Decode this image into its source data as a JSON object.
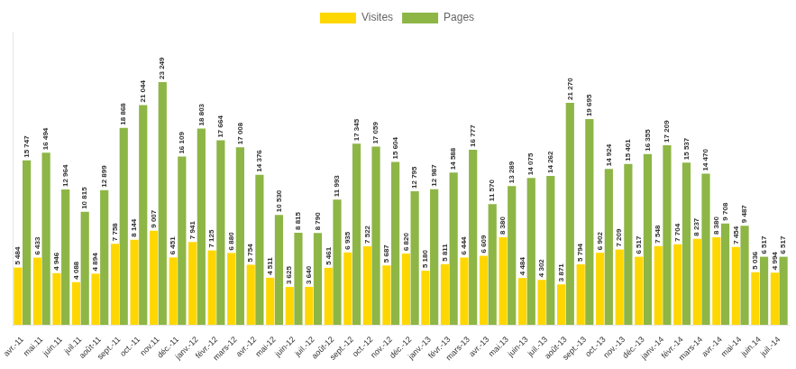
{
  "chart_data": {
    "type": "bar",
    "categories": [
      "avr.-11",
      "mai.11",
      "juin.11",
      "juil.11",
      "août-11",
      "sept.-11",
      "oct.-11",
      "nov.11",
      "déc.-11",
      "janv.-12",
      "févr.-12",
      "mars-12",
      "avr.-12",
      "mai-12",
      "juin-12",
      "juil.-12",
      "août-12",
      "sept.-12",
      "oct.-12",
      "nov.-12",
      "déc.-12",
      "janv.-13",
      "févr.-13",
      "mars-13",
      "avr.-13",
      "mai.13",
      "juin-13",
      "juil.-13",
      "août-13",
      "sept.-13",
      "oct.-13",
      "nov.-13",
      "déc.-13",
      "janv.-14",
      "févr.-14",
      "mars-14",
      "avr.-14",
      "mai-14",
      "juin.14",
      "juil.-14"
    ],
    "series": [
      {
        "name": "Visites",
        "color": "#FFD700",
        "values": [
          5484,
          6433,
          4946,
          4088,
          4894,
          7758,
          8144,
          9007,
          6451,
          7941,
          7125,
          6880,
          5754,
          4511,
          3625,
          3640,
          5461,
          6935,
          7522,
          5687,
          6820,
          5180,
          5811,
          6444,
          6609,
          8380,
          4484,
          4302,
          3871,
          5794,
          6902,
          7209,
          6517,
          7548,
          7704,
          8237,
          8380,
          7454,
          5036,
          4994
        ],
        "value_labels": [
          "5 484",
          "6 433",
          "4 946",
          "4 088",
          "4 894",
          "7 758",
          "8 144",
          "9 007",
          "6 451",
          "7 941",
          "7 125",
          "6 880",
          "5 754",
          "4 511",
          "3 625",
          "3 640",
          "5 461",
          "6 935",
          "7 522",
          "5 687",
          "6 820",
          "5 180",
          "5 811",
          "6 444",
          "6 609",
          "8 380",
          "4 484",
          "4 302",
          "3 871",
          "5 794",
          "6 902",
          "7 209",
          "6 517",
          "7 548",
          "7 704",
          "8 237",
          "8 380",
          "7 454",
          "5 036",
          "4 994"
        ]
      },
      {
        "name": "Pages",
        "color": "#8DB646",
        "values": [
          15747,
          16494,
          12964,
          10815,
          12899,
          18868,
          21044,
          23249,
          16109,
          18803,
          17664,
          17008,
          14376,
          10530,
          8815,
          8790,
          11993,
          17345,
          17059,
          15604,
          12795,
          12987,
          14588,
          16777,
          11570,
          13289,
          14075,
          14262,
          21270,
          19695,
          14924,
          15401,
          16355,
          17209,
          15537,
          14470,
          9708,
          9487,
          6517,
          6517
        ],
        "value_labels": [
          "15 747",
          "16 494",
          "12 964",
          "10 815",
          "12 899",
          "18 868",
          "21 044",
          "23 249",
          "16 109",
          "18 803",
          "17 664",
          "17 008",
          "14 376",
          "10 530",
          "8 815",
          "8 790",
          "11 993",
          "17 345",
          "17 059",
          "15 604",
          "12 795",
          "12 987",
          "14 588",
          "16 777",
          "11 570",
          "13 289",
          "14 075",
          "14 262",
          "21 270",
          "19 695",
          "14 924",
          "15 401",
          "16 355",
          "17 209",
          "15 537",
          "14 470",
          "9 708",
          "9 487",
          "6 517",
          "6 517"
        ]
      }
    ],
    "ylim": [
      0,
      28000
    ],
    "grid": false,
    "legend": "top",
    "data_labels": true,
    "tick_labels": "x"
  }
}
